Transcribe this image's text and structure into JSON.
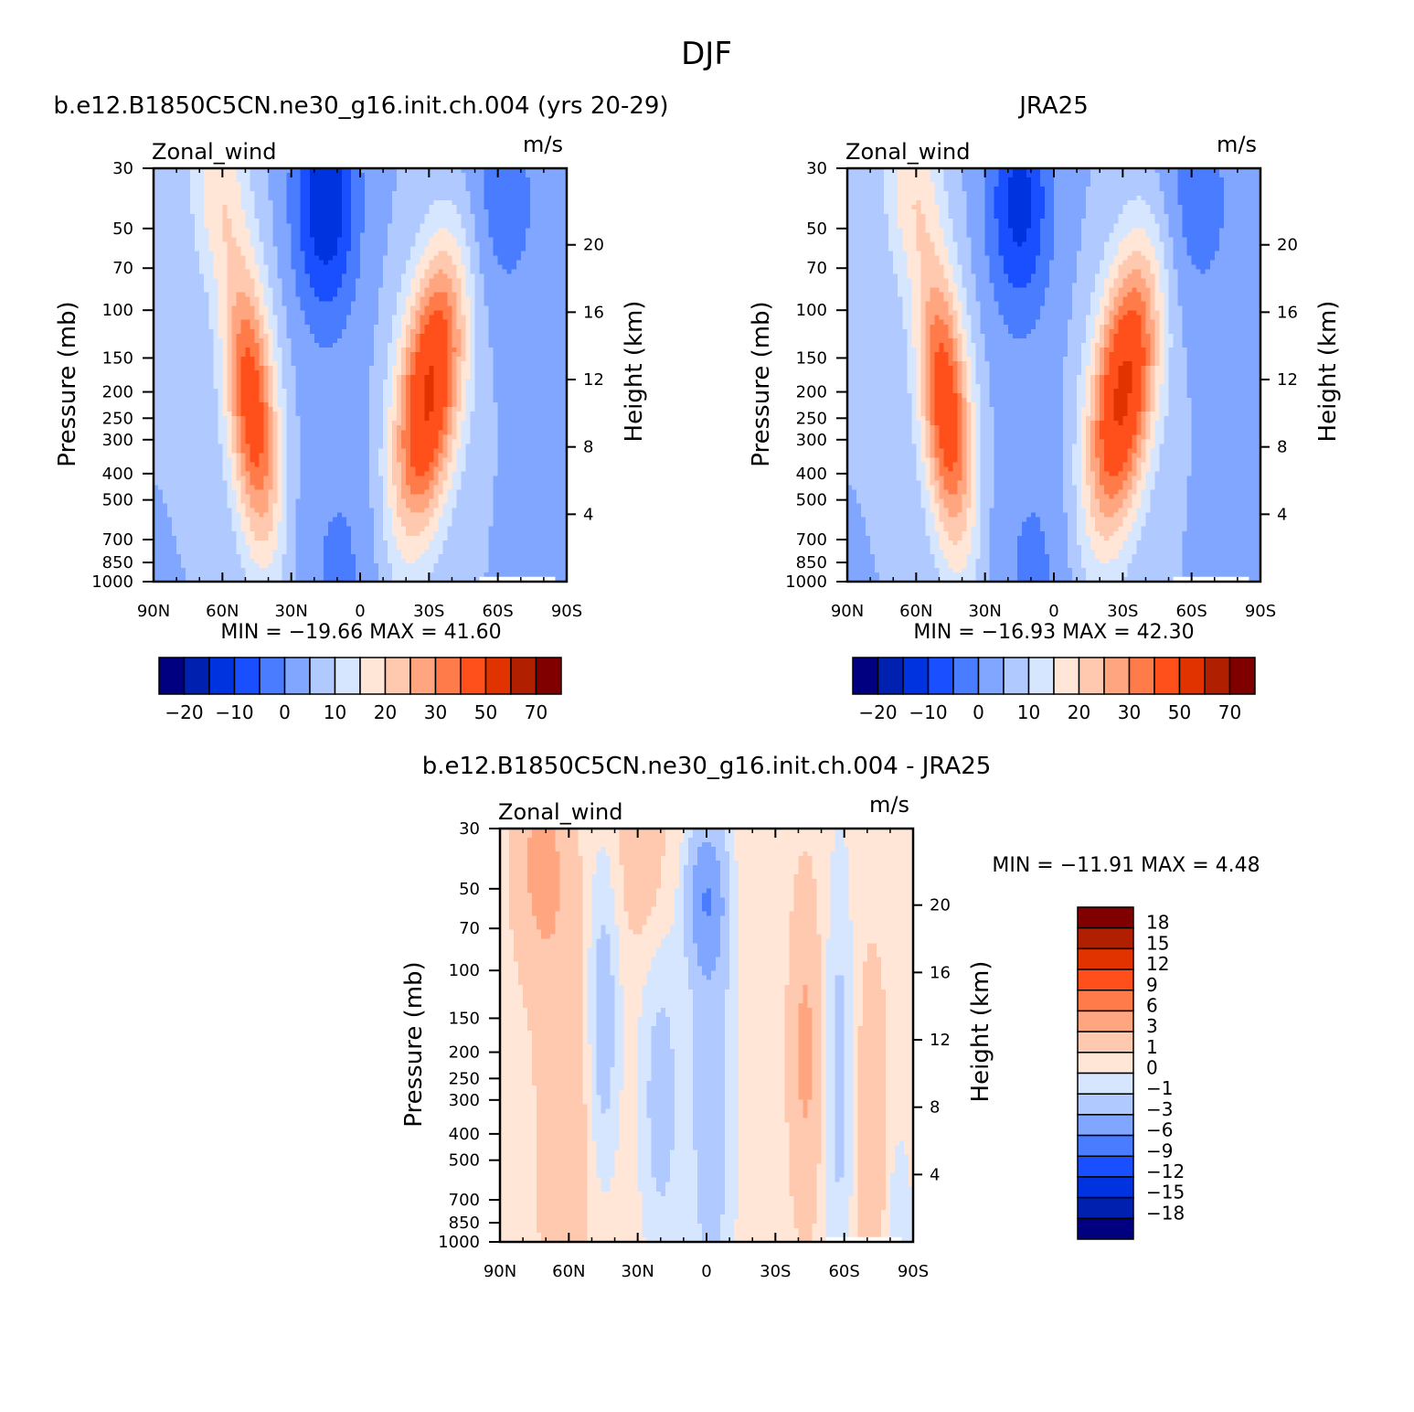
{
  "figure_title": "DJF",
  "chart_data": [
    {
      "type": "heatmap",
      "title": "b.e12.B1850C5CN.ne30_g16.init.ch.004 (yrs 20-29)",
      "variable_label": "Zonal_wind",
      "units": "m/s",
      "ylabel": "Pressure (mb)",
      "ylabel_right": "Height (km)",
      "xlabel": "",
      "x_ticks": [
        "90N",
        "60N",
        "30N",
        "0",
        "30S",
        "60S",
        "90S"
      ],
      "y_ticks": [
        "30",
        "50",
        "70",
        "100",
        "150",
        "200",
        "250",
        "300",
        "400",
        "500",
        "700",
        "850",
        "1000"
      ],
      "y_ticks_right": [
        "20",
        "16",
        "12",
        "8",
        "4"
      ],
      "log_pressure_axis": true,
      "min_label": "MIN = -19.66",
      "max_label": "MAX = 41.60",
      "min": -19.66,
      "max": 41.6,
      "colorbar_orientation": "horizontal",
      "colorbar_tick_labels": [
        "-20",
        "-10",
        "0",
        "10",
        "20",
        "30",
        "50",
        "70"
      ],
      "features": [
        {
          "kind": "jet",
          "lat": -30,
          "p": 200,
          "value": 41.6
        },
        {
          "kind": "jet",
          "lat": 47,
          "p": 230,
          "value": 35
        },
        {
          "kind": "easterly",
          "lat": 15,
          "p": 40,
          "value": -19.66
        }
      ]
    },
    {
      "type": "heatmap",
      "title": "JRA25",
      "variable_label": "Zonal_wind",
      "units": "m/s",
      "ylabel": "Pressure (mb)",
      "ylabel_right": "Height (km)",
      "xlabel": "",
      "x_ticks": [
        "90N",
        "60N",
        "30N",
        "0",
        "30S",
        "60S",
        "90S"
      ],
      "y_ticks": [
        "30",
        "50",
        "70",
        "100",
        "150",
        "200",
        "250",
        "300",
        "400",
        "500",
        "700",
        "850",
        "1000"
      ],
      "y_ticks_right": [
        "20",
        "16",
        "12",
        "8",
        "4"
      ],
      "log_pressure_axis": true,
      "min_label": "MIN = -16.93",
      "max_label": "MAX = 42.30",
      "min": -16.93,
      "max": 42.3,
      "colorbar_orientation": "horizontal",
      "colorbar_tick_labels": [
        "-20",
        "-10",
        "0",
        "10",
        "20",
        "30",
        "50",
        "70"
      ],
      "features": [
        {
          "kind": "jet",
          "lat": -30,
          "p": 200,
          "value": 42.3
        },
        {
          "kind": "jet",
          "lat": 47,
          "p": 230,
          "value": 36
        },
        {
          "kind": "easterly",
          "lat": 15,
          "p": 40,
          "value": -16.93
        }
      ]
    },
    {
      "type": "heatmap",
      "title": "b.e12.B1850C5CN.ne30_g16.init.ch.004 - JRA25",
      "variable_label": "Zonal_wind",
      "units": "m/s",
      "ylabel": "Pressure (mb)",
      "ylabel_right": "Height (km)",
      "xlabel": "",
      "x_ticks": [
        "90N",
        "60N",
        "30N",
        "0",
        "30S",
        "60S",
        "90S"
      ],
      "y_ticks": [
        "30",
        "50",
        "70",
        "100",
        "150",
        "200",
        "250",
        "300",
        "400",
        "500",
        "700",
        "850",
        "1000"
      ],
      "y_ticks_right": [
        "20",
        "16",
        "12",
        "8",
        "4"
      ],
      "log_pressure_axis": true,
      "min_label": "MIN = -11.91",
      "max_label": "MAX = 4.48",
      "min": -11.91,
      "max": 4.48,
      "colorbar_orientation": "vertical",
      "colorbar_tick_labels": [
        "18",
        "15",
        "12",
        "9",
        "6",
        "3",
        "1",
        "0",
        "-1",
        "-3",
        "-6",
        "-9",
        "-12",
        "-15",
        "-18"
      ]
    }
  ],
  "colors": {
    "mean_fill": [
      "#000080",
      "#0020b0",
      "#0033e0",
      "#1a4fff",
      "#4a7cff",
      "#80a6ff",
      "#b0c9ff",
      "#d6e6ff",
      "#ffe6d6",
      "#ffc9b0",
      "#ffa680",
      "#ff7c4a",
      "#ff4f1a",
      "#e03300",
      "#b02000",
      "#800000"
    ],
    "diff_fill": [
      "#000080",
      "#0020b0",
      "#0033e0",
      "#1a4fff",
      "#4a7cff",
      "#80a6ff",
      "#b0c9ff",
      "#d6e6ff",
      "#ffe6d6",
      "#ffc9b0",
      "#ffa680",
      "#ff7c4a",
      "#ff4f1a",
      "#e03300",
      "#b02000",
      "#800000"
    ]
  }
}
